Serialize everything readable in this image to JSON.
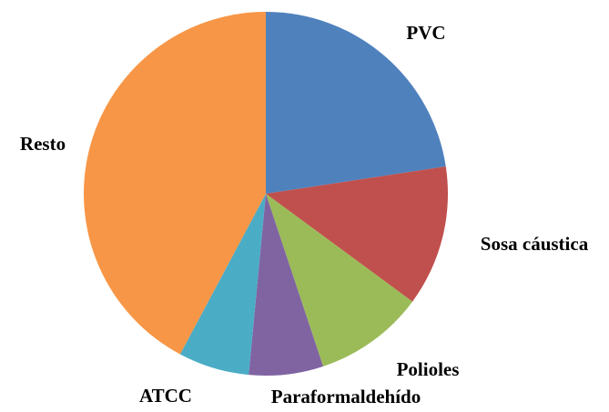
{
  "chart_data": {
    "type": "pie",
    "categories": [
      "PVC",
      "Sosa cáustica",
      "Polioles",
      "Paraformaldehído",
      "ATCC",
      "Resto"
    ],
    "values": [
      22.6,
      12.5,
      9.8,
      6.6,
      6.3,
      42.2
    ],
    "colors": [
      "#4f81bd",
      "#c0504d",
      "#9bbb59",
      "#8064a2",
      "#4bacc6",
      "#f79646"
    ]
  }
}
